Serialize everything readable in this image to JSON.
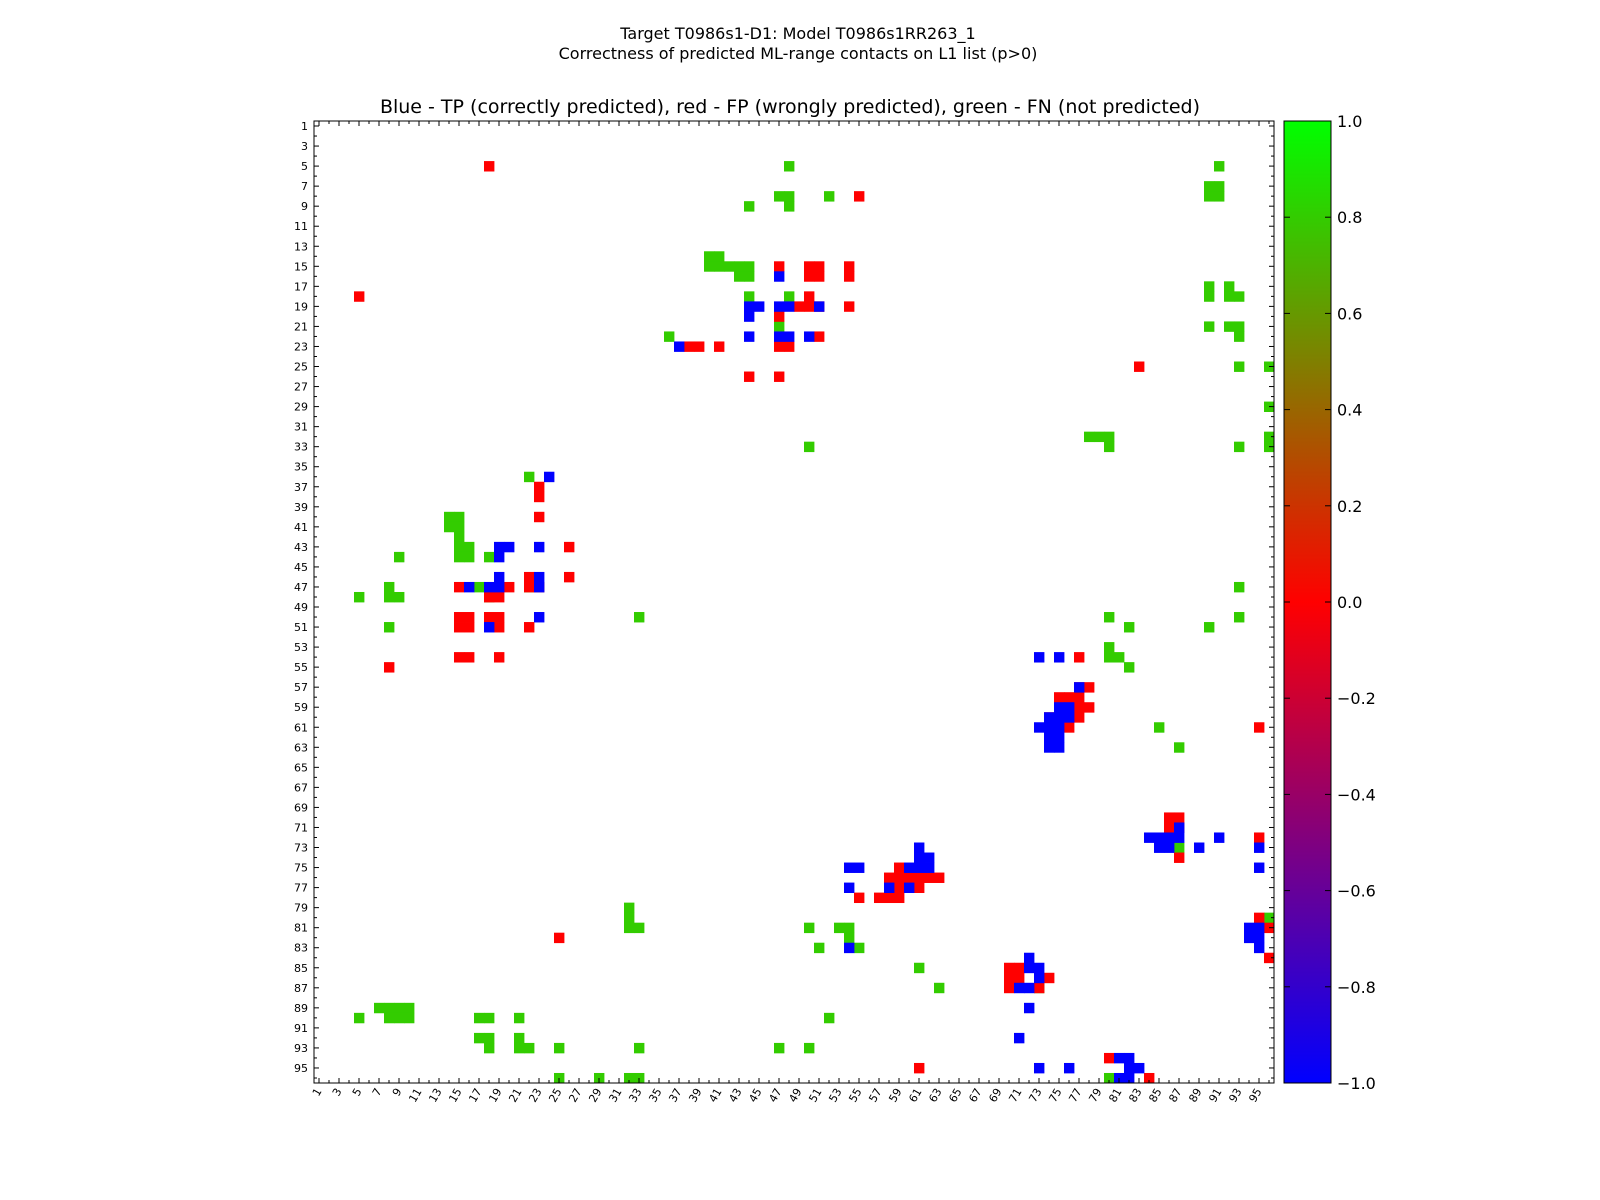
{
  "chart_data": {
    "type": "heatmap",
    "suptitle_line1": "Target T0986s1-D1: Model T0986s1RR263_1",
    "suptitle_line2": "Correctness of predicted ML-range contacts on L1 list (p>0)",
    "title": "Blue - TP (correctly predicted), red - FP (wrongly predicted), green - FN (not predicted)",
    "xlabel": "",
    "ylabel": "",
    "n_residues": 96,
    "x_tick_labels": [
      "1",
      "3",
      "5",
      "7",
      "9",
      "11",
      "13",
      "15",
      "17",
      "19",
      "21",
      "23",
      "25",
      "27",
      "29",
      "31",
      "33",
      "35",
      "37",
      "39",
      "41",
      "43",
      "45",
      "47",
      "49",
      "51",
      "53",
      "55",
      "57",
      "59",
      "61",
      "63",
      "65",
      "67",
      "69",
      "71",
      "73",
      "75",
      "77",
      "79",
      "81",
      "83",
      "85",
      "87",
      "89",
      "91",
      "93",
      "95"
    ],
    "y_tick_labels": [
      "1",
      "3",
      "5",
      "7",
      "9",
      "11",
      "13",
      "15",
      "17",
      "19",
      "21",
      "23",
      "25",
      "27",
      "29",
      "31",
      "33",
      "35",
      "37",
      "39",
      "41",
      "43",
      "45",
      "47",
      "49",
      "51",
      "53",
      "55",
      "57",
      "59",
      "61",
      "63",
      "65",
      "67",
      "69",
      "71",
      "73",
      "75",
      "77",
      "79",
      "81",
      "83",
      "85",
      "87",
      "89",
      "91",
      "93",
      "95"
    ],
    "colorbar": {
      "min": -1.0,
      "max": 1.0,
      "tick_labels": [
        "1.0",
        "0.8",
        "0.6",
        "0.4",
        "0.2",
        "0.0",
        "−0.2",
        "−0.4",
        "−0.6",
        "−0.8",
        "−1.0"
      ],
      "tick_values": [
        1.0,
        0.8,
        0.6,
        0.4,
        0.2,
        0.0,
        -0.2,
        -0.4,
        -0.6,
        -0.8,
        -1.0
      ]
    },
    "colors": {
      "tp": "#0000ff",
      "fp": "#ff0000",
      "fn": "#33cc00",
      "cb_top": "#00ff00",
      "cb_mid": "#ff0000",
      "cb_bottom": "#0000ff"
    },
    "cells": {
      "tp": [
        [
          24,
          36
        ],
        [
          20,
          43
        ],
        [
          19,
          43
        ],
        [
          23,
          43
        ],
        [
          19,
          44
        ],
        [
          19,
          46
        ],
        [
          23,
          46
        ],
        [
          16,
          47
        ],
        [
          18,
          47
        ],
        [
          19,
          47
        ],
        [
          23,
          47
        ],
        [
          23,
          50
        ],
        [
          18,
          51
        ],
        [
          47,
          16
        ],
        [
          45,
          19
        ],
        [
          44,
          19
        ],
        [
          48,
          19
        ],
        [
          47,
          19
        ],
        [
          51,
          19
        ],
        [
          44,
          20
        ],
        [
          44,
          22
        ],
        [
          47,
          22
        ],
        [
          48,
          22
        ],
        [
          50,
          22
        ],
        [
          37,
          23
        ],
        [
          73,
          54
        ],
        [
          75,
          54
        ],
        [
          77,
          57
        ],
        [
          76,
          59
        ],
        [
          75,
          59
        ],
        [
          76,
          60
        ],
        [
          74,
          60
        ],
        [
          75,
          60
        ],
        [
          73,
          61
        ],
        [
          74,
          61
        ],
        [
          75,
          61
        ],
        [
          74,
          62
        ],
        [
          75,
          62
        ],
        [
          74,
          63
        ],
        [
          75,
          63
        ],
        [
          87,
          71
        ],
        [
          85,
          72
        ],
        [
          86,
          72
        ],
        [
          87,
          72
        ],
        [
          84,
          72
        ],
        [
          85,
          73
        ],
        [
          86,
          73
        ],
        [
          89,
          73
        ],
        [
          91,
          72
        ],
        [
          95,
          73
        ],
        [
          95,
          75
        ],
        [
          61,
          73
        ],
        [
          61,
          74
        ],
        [
          62,
          74
        ],
        [
          60,
          75
        ],
        [
          61,
          75
        ],
        [
          62,
          75
        ],
        [
          54,
          75
        ],
        [
          55,
          75
        ],
        [
          58,
          77
        ],
        [
          54,
          77
        ],
        [
          60,
          77
        ],
        [
          95,
          81
        ],
        [
          94,
          81
        ],
        [
          94,
          82
        ],
        [
          95,
          82
        ],
        [
          95,
          83
        ],
        [
          54,
          83
        ],
        [
          72,
          84
        ],
        [
          73,
          85
        ],
        [
          72,
          85
        ],
        [
          73,
          86
        ],
        [
          71,
          87
        ],
        [
          72,
          87
        ],
        [
          72,
          89
        ],
        [
          71,
          92
        ],
        [
          81,
          94
        ],
        [
          82,
          94
        ],
        [
          82,
          95
        ],
        [
          83,
          95
        ],
        [
          81,
          96
        ],
        [
          82,
          96
        ],
        [
          73,
          95
        ],
        [
          76,
          95
        ]
      ],
      "fp": [
        [
          18,
          5
        ],
        [
          55,
          8
        ],
        [
          47,
          15
        ],
        [
          50,
          15
        ],
        [
          51,
          15
        ],
        [
          54,
          15
        ],
        [
          50,
          16
        ],
        [
          51,
          16
        ],
        [
          54,
          16
        ],
        [
          50,
          18
        ],
        [
          50,
          19
        ],
        [
          51,
          19
        ],
        [
          49,
          19
        ],
        [
          54,
          19
        ],
        [
          47,
          20
        ],
        [
          5,
          18
        ],
        [
          38,
          23
        ],
        [
          39,
          23
        ],
        [
          41,
          23
        ],
        [
          48,
          23
        ],
        [
          47,
          23
        ],
        [
          51,
          22
        ],
        [
          83,
          25
        ],
        [
          44,
          26
        ],
        [
          47,
          26
        ],
        [
          23,
          37
        ],
        [
          23,
          38
        ],
        [
          23,
          40
        ],
        [
          26,
          43
        ],
        [
          26,
          46
        ],
        [
          15,
          47
        ],
        [
          20,
          47
        ],
        [
          23,
          47
        ],
        [
          18,
          48
        ],
        [
          19,
          48
        ],
        [
          22,
          46
        ],
        [
          22,
          47
        ],
        [
          15,
          50
        ],
        [
          16,
          50
        ],
        [
          15,
          51
        ],
        [
          16,
          51
        ],
        [
          18,
          50
        ],
        [
          19,
          50
        ],
        [
          19,
          51
        ],
        [
          22,
          51
        ],
        [
          15,
          54
        ],
        [
          16,
          54
        ],
        [
          19,
          54
        ],
        [
          8,
          55
        ],
        [
          77,
          54
        ],
        [
          77,
          57
        ],
        [
          75,
          58
        ],
        [
          76,
          58
        ],
        [
          77,
          58
        ],
        [
          78,
          57
        ],
        [
          76,
          59
        ],
        [
          77,
          59
        ],
        [
          78,
          59
        ],
        [
          76,
          60
        ],
        [
          74,
          60
        ],
        [
          77,
          60
        ],
        [
          76,
          61
        ],
        [
          95,
          61
        ],
        [
          86,
          70
        ],
        [
          87,
          70
        ],
        [
          86,
          71
        ],
        [
          87,
          71
        ],
        [
          95,
          72
        ],
        [
          87,
          74
        ],
        [
          61,
          74
        ],
        [
          59,
          75
        ],
        [
          58,
          76
        ],
        [
          59,
          76
        ],
        [
          60,
          76
        ],
        [
          61,
          76
        ],
        [
          62,
          76
        ],
        [
          63,
          76
        ],
        [
          58,
          77
        ],
        [
          59,
          77
        ],
        [
          61,
          77
        ],
        [
          57,
          78
        ],
        [
          58,
          78
        ],
        [
          59,
          78
        ],
        [
          55,
          78
        ],
        [
          95,
          80
        ],
        [
          96,
          81
        ],
        [
          25,
          82
        ],
        [
          96,
          84
        ],
        [
          70,
          85
        ],
        [
          71,
          85
        ],
        [
          70,
          86
        ],
        [
          71,
          86
        ],
        [
          74,
          86
        ],
        [
          70,
          87
        ],
        [
          73,
          87
        ],
        [
          61,
          95
        ],
        [
          80,
          94
        ],
        [
          82,
          95
        ],
        [
          84,
          96
        ]
      ],
      "fn": [
        [
          48,
          5
        ],
        [
          91,
          5
        ],
        [
          90,
          7
        ],
        [
          91,
          7
        ],
        [
          90,
          8
        ],
        [
          91,
          8
        ],
        [
          47,
          8
        ],
        [
          48,
          8
        ],
        [
          52,
          8
        ],
        [
          44,
          9
        ],
        [
          48,
          9
        ],
        [
          40,
          14
        ],
        [
          41,
          14
        ],
        [
          40,
          15
        ],
        [
          41,
          15
        ],
        [
          42,
          15
        ],
        [
          43,
          15
        ],
        [
          44,
          15
        ],
        [
          43,
          16
        ],
        [
          44,
          16
        ],
        [
          90,
          17
        ],
        [
          92,
          17
        ],
        [
          90,
          18
        ],
        [
          92,
          18
        ],
        [
          93,
          18
        ],
        [
          44,
          18
        ],
        [
          48,
          18
        ],
        [
          47,
          21
        ],
        [
          90,
          21
        ],
        [
          92,
          21
        ],
        [
          93,
          21
        ],
        [
          93,
          22
        ],
        [
          36,
          22
        ],
        [
          93,
          25
        ],
        [
          96,
          25
        ],
        [
          96,
          29
        ],
        [
          78,
          32
        ],
        [
          79,
          32
        ],
        [
          80,
          32
        ],
        [
          80,
          33
        ],
        [
          50,
          33
        ],
        [
          93,
          33
        ],
        [
          96,
          32
        ],
        [
          96,
          33
        ],
        [
          22,
          36
        ],
        [
          14,
          40
        ],
        [
          15,
          40
        ],
        [
          14,
          41
        ],
        [
          15,
          41
        ],
        [
          15,
          42
        ],
        [
          15,
          43
        ],
        [
          16,
          43
        ],
        [
          15,
          44
        ],
        [
          16,
          44
        ],
        [
          18,
          44
        ],
        [
          9,
          44
        ],
        [
          8,
          47
        ],
        [
          8,
          48
        ],
        [
          9,
          48
        ],
        [
          5,
          48
        ],
        [
          17,
          47
        ],
        [
          18,
          48
        ],
        [
          22,
          47
        ],
        [
          93,
          47
        ],
        [
          33,
          50
        ],
        [
          80,
          50
        ],
        [
          93,
          50
        ],
        [
          8,
          51
        ],
        [
          82,
          51
        ],
        [
          90,
          51
        ],
        [
          80,
          53
        ],
        [
          80,
          54
        ],
        [
          81,
          54
        ],
        [
          82,
          55
        ],
        [
          85,
          61
        ],
        [
          87,
          63
        ],
        [
          87,
          73
        ],
        [
          32,
          79
        ],
        [
          32,
          80
        ],
        [
          32,
          81
        ],
        [
          33,
          81
        ],
        [
          50,
          81
        ],
        [
          53,
          81
        ],
        [
          54,
          81
        ],
        [
          54,
          82
        ],
        [
          51,
          83
        ],
        [
          55,
          83
        ],
        [
          96,
          80
        ],
        [
          61,
          85
        ],
        [
          63,
          87
        ],
        [
          73,
          87
        ],
        [
          8,
          89
        ],
        [
          9,
          89
        ],
        [
          10,
          89
        ],
        [
          7,
          89
        ],
        [
          8,
          90
        ],
        [
          9,
          90
        ],
        [
          10,
          90
        ],
        [
          5,
          90
        ],
        [
          17,
          90
        ],
        [
          18,
          90
        ],
        [
          21,
          90
        ],
        [
          52,
          90
        ],
        [
          17,
          92
        ],
        [
          18,
          92
        ],
        [
          21,
          92
        ],
        [
          18,
          93
        ],
        [
          21,
          93
        ],
        [
          22,
          93
        ],
        [
          25,
          93
        ],
        [
          33,
          93
        ],
        [
          47,
          93
        ],
        [
          50,
          93
        ],
        [
          25,
          96
        ],
        [
          29,
          96
        ],
        [
          32,
          96
        ],
        [
          33,
          96
        ],
        [
          80,
          96
        ]
      ]
    }
  }
}
